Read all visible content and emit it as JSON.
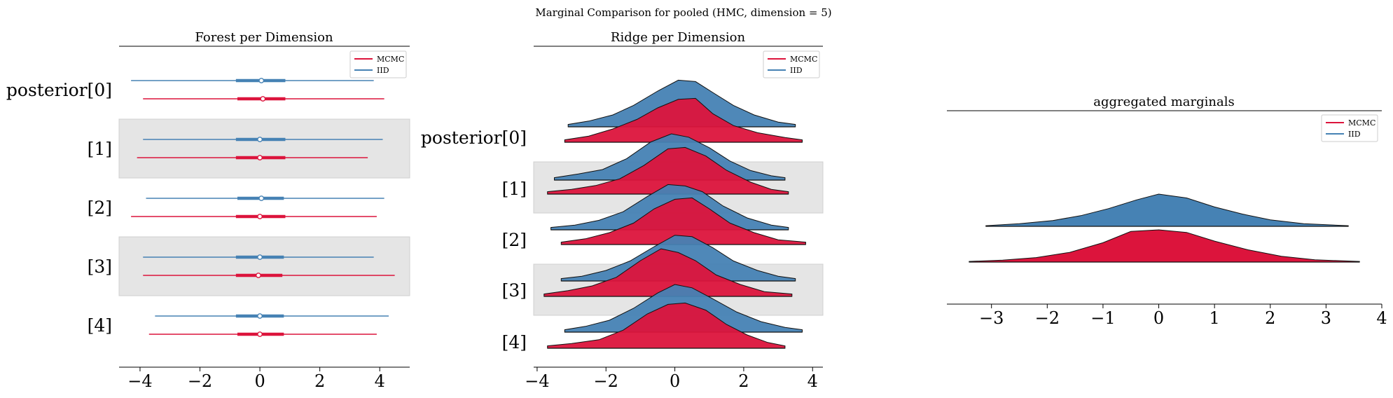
{
  "suptitle": "Marginal Comparison for pooled (HMC, dimension = 5)",
  "colors": {
    "mcmc": "#dc143c",
    "iid": "#4682b4",
    "band": "#e5e5e5"
  },
  "legend": {
    "mcmc": "MCMC",
    "iid": "IID"
  },
  "chart_data": [
    {
      "type": "forest",
      "title": "Forest per Dimension",
      "row_labels": [
        "posterior[0]",
        "[1]",
        "[2]",
        "[3]",
        "[4]"
      ],
      "xlim": [
        -4.7,
        5.0
      ],
      "xticks": [
        -4,
        -2,
        0,
        2,
        4
      ],
      "xtick_labels": [
        "−4",
        "−2",
        "0",
        "2",
        "4"
      ],
      "legend_position": "top-right",
      "series": [
        {
          "name": "IID",
          "rows": [
            {
              "low": -4.3,
              "q1": -0.8,
              "median": 0.05,
              "q3": 0.85,
              "high": 3.8
            },
            {
              "low": -3.9,
              "q1": -0.8,
              "median": 0.0,
              "q3": 0.85,
              "high": 4.1
            },
            {
              "low": -3.8,
              "q1": -0.75,
              "median": 0.05,
              "q3": 0.8,
              "high": 4.15
            },
            {
              "low": -3.9,
              "q1": -0.8,
              "median": 0.0,
              "q3": 0.8,
              "high": 3.8
            },
            {
              "low": -3.5,
              "q1": -0.8,
              "median": 0.0,
              "q3": 0.8,
              "high": 4.3
            }
          ]
        },
        {
          "name": "MCMC",
          "rows": [
            {
              "low": -3.9,
              "q1": -0.75,
              "median": 0.1,
              "q3": 0.85,
              "high": 4.15
            },
            {
              "low": -4.1,
              "q1": -0.8,
              "median": 0.0,
              "q3": 0.85,
              "high": 3.6
            },
            {
              "low": -4.3,
              "q1": -0.8,
              "median": 0.0,
              "q3": 0.85,
              "high": 3.9
            },
            {
              "low": -3.9,
              "q1": -0.8,
              "median": -0.05,
              "q3": 0.75,
              "high": 4.5
            },
            {
              "low": -3.7,
              "q1": -0.75,
              "median": 0.0,
              "q3": 0.8,
              "high": 3.9
            }
          ]
        }
      ]
    },
    {
      "type": "ridge",
      "title": "Ridge per Dimension",
      "row_labels": [
        "posterior[0]",
        "[1]",
        "[2]",
        "[3]",
        "[4]"
      ],
      "xlim": [
        -4.1,
        4.3
      ],
      "xticks": [
        -4,
        -2,
        0,
        2,
        4
      ],
      "xtick_labels": [
        "−4",
        "−2",
        "0",
        "2",
        "4"
      ],
      "legend_position": "top-right",
      "series": [
        {
          "name": "IID",
          "rows": [
            {
              "x": [
                -3.1,
                -2.5,
                -1.8,
                -1.2,
                -0.5,
                0.1,
                0.6,
                1.1,
                1.7,
                2.3,
                3.0,
                3.5
              ],
              "y": [
                0.05,
                0.12,
                0.25,
                0.45,
                0.75,
                0.98,
                0.95,
                0.72,
                0.45,
                0.25,
                0.1,
                0.05
              ]
            },
            {
              "x": [
                -3.5,
                -2.8,
                -2.1,
                -1.4,
                -0.7,
                -0.1,
                0.4,
                1.0,
                1.6,
                2.2,
                2.8,
                3.2
              ],
              "y": [
                0.05,
                0.13,
                0.22,
                0.45,
                0.8,
                0.97,
                0.9,
                0.68,
                0.4,
                0.2,
                0.09,
                0.05
              ]
            },
            {
              "x": [
                -3.6,
                -2.9,
                -2.2,
                -1.5,
                -0.8,
                -0.2,
                0.3,
                0.8,
                1.4,
                2.1,
                2.8,
                3.3
              ],
              "y": [
                0.05,
                0.1,
                0.2,
                0.38,
                0.7,
                0.95,
                0.92,
                0.8,
                0.5,
                0.25,
                0.1,
                0.05
              ]
            },
            {
              "x": [
                -3.3,
                -2.7,
                -2.0,
                -1.3,
                -0.6,
                0.0,
                0.5,
                1.1,
                1.7,
                2.4,
                3.0,
                3.5
              ],
              "y": [
                0.05,
                0.1,
                0.22,
                0.42,
                0.72,
                0.96,
                0.93,
                0.7,
                0.42,
                0.22,
                0.1,
                0.05
              ]
            },
            {
              "x": [
                -3.2,
                -2.6,
                -1.9,
                -1.2,
                -0.5,
                0.0,
                0.5,
                1.1,
                1.8,
                2.5,
                3.2,
                3.7
              ],
              "y": [
                0.05,
                0.12,
                0.25,
                0.5,
                0.82,
                1.0,
                0.93,
                0.7,
                0.42,
                0.22,
                0.1,
                0.05
              ]
            }
          ]
        },
        {
          "name": "MCMC",
          "rows": [
            {
              "x": [
                -3.2,
                -2.5,
                -1.8,
                -1.1,
                -0.5,
                0.1,
                0.6,
                1.1,
                1.7,
                2.4,
                3.2,
                3.7
              ],
              "y": [
                0.05,
                0.13,
                0.28,
                0.48,
                0.72,
                0.9,
                0.92,
                0.6,
                0.35,
                0.2,
                0.1,
                0.05
              ]
            },
            {
              "x": [
                -3.7,
                -3.0,
                -2.3,
                -1.6,
                -0.9,
                -0.2,
                0.3,
                0.9,
                1.5,
                2.2,
                2.8,
                3.3
              ],
              "y": [
                0.05,
                0.1,
                0.18,
                0.32,
                0.6,
                0.95,
                0.98,
                0.8,
                0.5,
                0.25,
                0.1,
                0.05
              ]
            },
            {
              "x": [
                -3.3,
                -2.6,
                -1.9,
                -1.2,
                -0.6,
                0.0,
                0.5,
                1.0,
                1.6,
                2.3,
                3.0,
                3.8
              ],
              "y": [
                0.05,
                0.12,
                0.25,
                0.45,
                0.75,
                0.95,
                0.98,
                0.75,
                0.45,
                0.25,
                0.1,
                0.05
              ]
            },
            {
              "x": [
                -3.8,
                -3.1,
                -2.4,
                -1.7,
                -1.0,
                -0.4,
                0.1,
                0.6,
                1.2,
                1.9,
                2.6,
                3.4
              ],
              "y": [
                0.05,
                0.12,
                0.22,
                0.4,
                0.75,
                1.0,
                0.92,
                0.75,
                0.45,
                0.25,
                0.1,
                0.05
              ]
            },
            {
              "x": [
                -3.7,
                -3.0,
                -2.2,
                -1.5,
                -0.8,
                -0.2,
                0.3,
                0.9,
                1.5,
                2.1,
                2.7,
                3.2
              ],
              "y": [
                0.05,
                0.1,
                0.18,
                0.38,
                0.72,
                0.92,
                0.95,
                0.8,
                0.5,
                0.28,
                0.12,
                0.05
              ]
            }
          ]
        }
      ]
    },
    {
      "type": "ridge",
      "title": "aggregated marginals",
      "xlim": [
        -3.8,
        4.0
      ],
      "xticks": [
        -3,
        -2,
        -1,
        0,
        1,
        2,
        3,
        4
      ],
      "xtick_labels": [
        "−3",
        "−2",
        "−1",
        "0",
        "1",
        "2",
        "3",
        "4"
      ],
      "legend_position": "top-right",
      "series": [
        {
          "name": "IID",
          "x": [
            -3.1,
            -2.5,
            -1.9,
            -1.4,
            -0.9,
            -0.4,
            0.0,
            0.5,
            1.0,
            1.5,
            2.0,
            2.6,
            3.4
          ],
          "y": [
            0.02,
            0.08,
            0.18,
            0.33,
            0.55,
            0.82,
            1.0,
            0.88,
            0.6,
            0.38,
            0.2,
            0.08,
            0.02
          ]
        },
        {
          "name": "MCMC",
          "x": [
            -3.4,
            -2.8,
            -2.2,
            -1.6,
            -1.0,
            -0.5,
            0.0,
            0.5,
            1.0,
            1.6,
            2.2,
            2.8,
            3.6
          ],
          "y": [
            0.02,
            0.06,
            0.14,
            0.3,
            0.6,
            0.95,
            1.0,
            0.92,
            0.65,
            0.38,
            0.18,
            0.07,
            0.02
          ]
        }
      ]
    }
  ]
}
